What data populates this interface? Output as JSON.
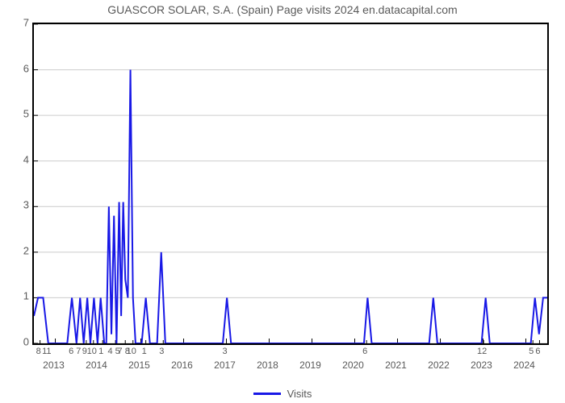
{
  "title": "GUASCOR SOLAR, S.A. (Spain) Page visits 2024 en.datacapital.com",
  "legend": {
    "label": "Visits",
    "color": "#1818e6"
  },
  "chart": {
    "type": "line",
    "background_color": "#ffffff",
    "border_color": "#000000",
    "grid_color": "#cccccc",
    "line_color": "#1818e6",
    "line_width": 2,
    "title_fontsize": 14,
    "tick_fontsize": 12,
    "tick_color": "#595959",
    "ylim": [
      0,
      7
    ],
    "yticks": [
      0,
      1,
      2,
      3,
      4,
      5,
      6,
      7
    ],
    "xrange_fraction": [
      0,
      1
    ],
    "major_year_ticks": [
      {
        "x": 0.0417,
        "label": "2013"
      },
      {
        "x": 0.125,
        "label": "2014"
      },
      {
        "x": 0.2083,
        "label": "2015"
      },
      {
        "x": 0.2917,
        "label": "2016"
      },
      {
        "x": 0.375,
        "label": "2017"
      },
      {
        "x": 0.4583,
        "label": "2018"
      },
      {
        "x": 0.5417,
        "label": "2019"
      },
      {
        "x": 0.625,
        "label": "2020"
      },
      {
        "x": 0.7083,
        "label": "2021"
      },
      {
        "x": 0.7917,
        "label": "2022"
      },
      {
        "x": 0.875,
        "label": "2023"
      },
      {
        "x": 0.9583,
        "label": "2024"
      }
    ],
    "minor_x_labels": [
      {
        "x": 0.012,
        "label": "8"
      },
      {
        "x": 0.028,
        "label": "11"
      },
      {
        "x": 0.083,
        "label": "6 7"
      },
      {
        "x": 0.102,
        "label": "9"
      },
      {
        "x": 0.116,
        "label": "10"
      },
      {
        "x": 0.134,
        "label": "1"
      },
      {
        "x": 0.159,
        "label": "4 5"
      },
      {
        "x": 0.178,
        "label": "7 8"
      },
      {
        "x": 0.193,
        "label": "10"
      },
      {
        "x": 0.218,
        "label": "1"
      },
      {
        "x": 0.252,
        "label": "3"
      },
      {
        "x": 0.375,
        "label": "3"
      },
      {
        "x": 0.648,
        "label": "6"
      },
      {
        "x": 0.876,
        "label": "12"
      },
      {
        "x": 0.972,
        "label": "5"
      },
      {
        "x": 0.985,
        "label": "6"
      }
    ],
    "series": [
      {
        "x": 0.0,
        "y": 0.6
      },
      {
        "x": 0.008,
        "y": 1.0
      },
      {
        "x": 0.018,
        "y": 1.0
      },
      {
        "x": 0.028,
        "y": 0.0
      },
      {
        "x": 0.04,
        "y": 0.0
      },
      {
        "x": 0.065,
        "y": 0.0
      },
      {
        "x": 0.074,
        "y": 1.0
      },
      {
        "x": 0.083,
        "y": 0.0
      },
      {
        "x": 0.09,
        "y": 1.0
      },
      {
        "x": 0.097,
        "y": 0.0
      },
      {
        "x": 0.104,
        "y": 1.0
      },
      {
        "x": 0.11,
        "y": 0.0
      },
      {
        "x": 0.117,
        "y": 1.0
      },
      {
        "x": 0.124,
        "y": 0.0
      },
      {
        "x": 0.13,
        "y": 1.0
      },
      {
        "x": 0.137,
        "y": 0.0
      },
      {
        "x": 0.141,
        "y": 0.0
      },
      {
        "x": 0.146,
        "y": 3.0
      },
      {
        "x": 0.151,
        "y": 0.2
      },
      {
        "x": 0.156,
        "y": 2.8
      },
      {
        "x": 0.161,
        "y": 0.0
      },
      {
        "x": 0.166,
        "y": 3.1
      },
      {
        "x": 0.17,
        "y": 0.6
      },
      {
        "x": 0.174,
        "y": 3.1
      },
      {
        "x": 0.178,
        "y": 1.4
      },
      {
        "x": 0.183,
        "y": 1.0
      },
      {
        "x": 0.188,
        "y": 6.0
      },
      {
        "x": 0.193,
        "y": 1.0
      },
      {
        "x": 0.198,
        "y": 0.0
      },
      {
        "x": 0.21,
        "y": 0.0
      },
      {
        "x": 0.218,
        "y": 1.0
      },
      {
        "x": 0.226,
        "y": 0.0
      },
      {
        "x": 0.24,
        "y": 0.0
      },
      {
        "x": 0.248,
        "y": 2.0
      },
      {
        "x": 0.256,
        "y": 0.0
      },
      {
        "x": 0.36,
        "y": 0.0
      },
      {
        "x": 0.368,
        "y": 0.0
      },
      {
        "x": 0.376,
        "y": 1.0
      },
      {
        "x": 0.384,
        "y": 0.0
      },
      {
        "x": 0.635,
        "y": 0.0
      },
      {
        "x": 0.643,
        "y": 0.0
      },
      {
        "x": 0.65,
        "y": 1.0
      },
      {
        "x": 0.658,
        "y": 0.0
      },
      {
        "x": 0.77,
        "y": 0.0
      },
      {
        "x": 0.778,
        "y": 1.0
      },
      {
        "x": 0.786,
        "y": 0.0
      },
      {
        "x": 0.865,
        "y": 0.0
      },
      {
        "x": 0.872,
        "y": 0.0
      },
      {
        "x": 0.88,
        "y": 1.0
      },
      {
        "x": 0.888,
        "y": 0.0
      },
      {
        "x": 0.96,
        "y": 0.0
      },
      {
        "x": 0.968,
        "y": 0.0
      },
      {
        "x": 0.976,
        "y": 1.0
      },
      {
        "x": 0.984,
        "y": 0.2
      },
      {
        "x": 0.992,
        "y": 1.0
      },
      {
        "x": 1.0,
        "y": 1.0
      }
    ]
  }
}
